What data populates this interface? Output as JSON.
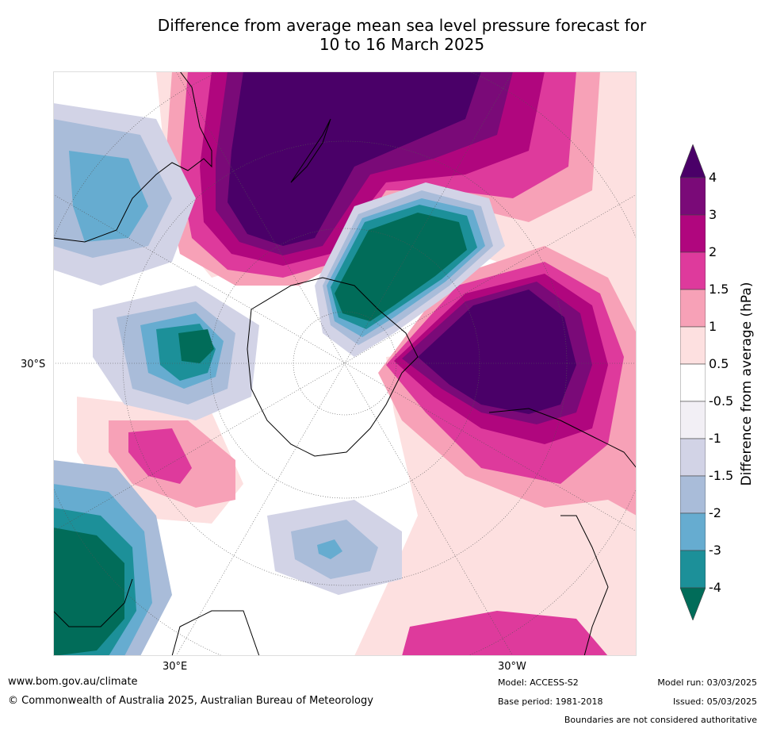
{
  "title": {
    "line1": "Difference from average mean sea level pressure forecast for",
    "line2": "10 to 16 March 2025"
  },
  "axis_labels": {
    "left_lat": "30°S",
    "bottom_left_lon": "30°E",
    "bottom_right_lon": "30°W"
  },
  "colorbar": {
    "title": "Difference from average (hPa)",
    "ticks": [
      "4",
      "3",
      "2",
      "1.5",
      "1",
      "0.5",
      "-0.5",
      "-1",
      "-1.5",
      "-2",
      "-3",
      "-4"
    ],
    "colors": {
      "gt4": "#4a0068",
      "3to4": "#7a0a78",
      "2to3": "#b0067e",
      "1.5to2": "#de3a9c",
      "1to1.5": "#f7a1b7",
      "0.5to1": "#fde0e0",
      "-0.5to0.5": "#ffffff",
      "-1to-0.5": "#f2eff5",
      "-1.5to-1": "#d2d3e6",
      "-2to-1.5": "#a9bcd9",
      "-3to-2": "#66acd0",
      "-4to-3": "#1c9099",
      "lt-4": "#016c59"
    }
  },
  "footer": {
    "website": "www.bom.gov.au/climate",
    "copyright": "© Commonwealth of Australia 2025, Australian Bureau of Meteorology",
    "model": "Model: ACCESS-S2",
    "base_period": "Base period: 1981-2018",
    "model_run": "Model run: 03/03/2025",
    "issued": "Issued: 05/03/2025",
    "disclaimer": "Boundaries are not considered authoritative"
  }
}
